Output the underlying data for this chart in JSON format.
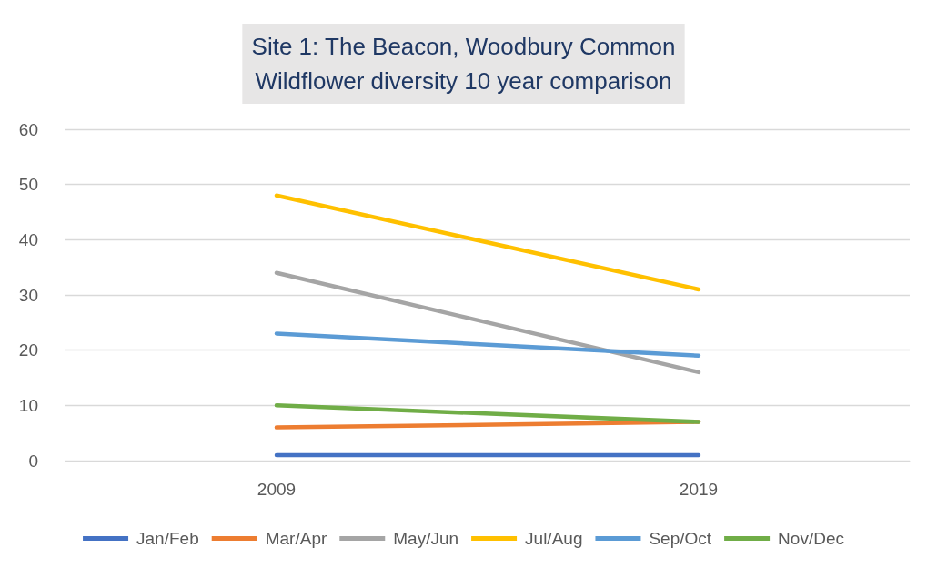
{
  "chart_data": {
    "type": "line",
    "title": "Site 1: The Beacon, Woodbury Common",
    "subtitle": "Wildflower diversity 10 year comparison",
    "categories": [
      "2009",
      "2019"
    ],
    "series": [
      {
        "name": "Jan/Feb",
        "color": "#4472c4",
        "values": [
          1,
          1
        ]
      },
      {
        "name": "Mar/Apr",
        "color": "#ed7d31",
        "values": [
          6,
          7
        ]
      },
      {
        "name": "May/Jun",
        "color": "#a5a5a5",
        "values": [
          34,
          16
        ]
      },
      {
        "name": "Jul/Aug",
        "color": "#ffc000",
        "values": [
          48,
          31
        ]
      },
      {
        "name": "Sep/Oct",
        "color": "#5b9bd5",
        "values": [
          23,
          19
        ]
      },
      {
        "name": "Nov/Dec",
        "color": "#70ad47",
        "values": [
          10,
          7
        ]
      }
    ],
    "ylim": [
      0,
      60
    ],
    "yticks": [
      0,
      10,
      20,
      30,
      40,
      50,
      60
    ],
    "grid": "y",
    "legend": "bottom",
    "marker": "none",
    "line_style": "solid"
  }
}
